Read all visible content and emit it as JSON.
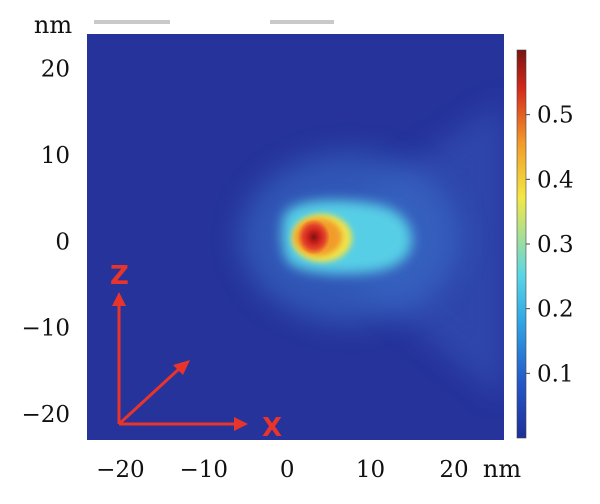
{
  "chart_data": {
    "type": "heatmap",
    "title": "",
    "x_unit": "nm",
    "y_unit": "nm",
    "xlim": [
      -24,
      26
    ],
    "ylim": [
      -23,
      24
    ],
    "x_ticks": [
      {
        "value": -20,
        "label": "−20"
      },
      {
        "value": -10,
        "label": "−10"
      },
      {
        "value": 0,
        "label": "0"
      },
      {
        "value": 10,
        "label": "10"
      },
      {
        "value": 20,
        "label": "20"
      }
    ],
    "y_ticks": [
      {
        "value": 20,
        "label": "20"
      },
      {
        "value": 10,
        "label": "10"
      },
      {
        "value": 0,
        "label": "0"
      },
      {
        "value": -10,
        "label": "−10"
      },
      {
        "value": -20,
        "label": "−20"
      }
    ],
    "colorbar": {
      "range": [
        0,
        0.6
      ],
      "ticks": [
        {
          "value": 0.5,
          "label": "0.5"
        },
        {
          "value": 0.4,
          "label": "0.4"
        },
        {
          "value": 0.3,
          "label": "0.3"
        },
        {
          "value": 0.2,
          "label": "0.2"
        },
        {
          "value": 0.1,
          "label": "0.1"
        }
      ],
      "colors": [
        "#1e2f99",
        "#2456c8",
        "#30a6e4",
        "#5ad6e6",
        "#f3e844",
        "#f29b2a",
        "#d42a1c",
        "#7a1412"
      ]
    },
    "peak": {
      "x": 3.5,
      "y": 0.8,
      "value": 0.58
    },
    "background_value": 0.03,
    "axes_indicator": {
      "vertical_label": "Z",
      "horizontal_label": "X",
      "color": "#e8342a"
    }
  }
}
